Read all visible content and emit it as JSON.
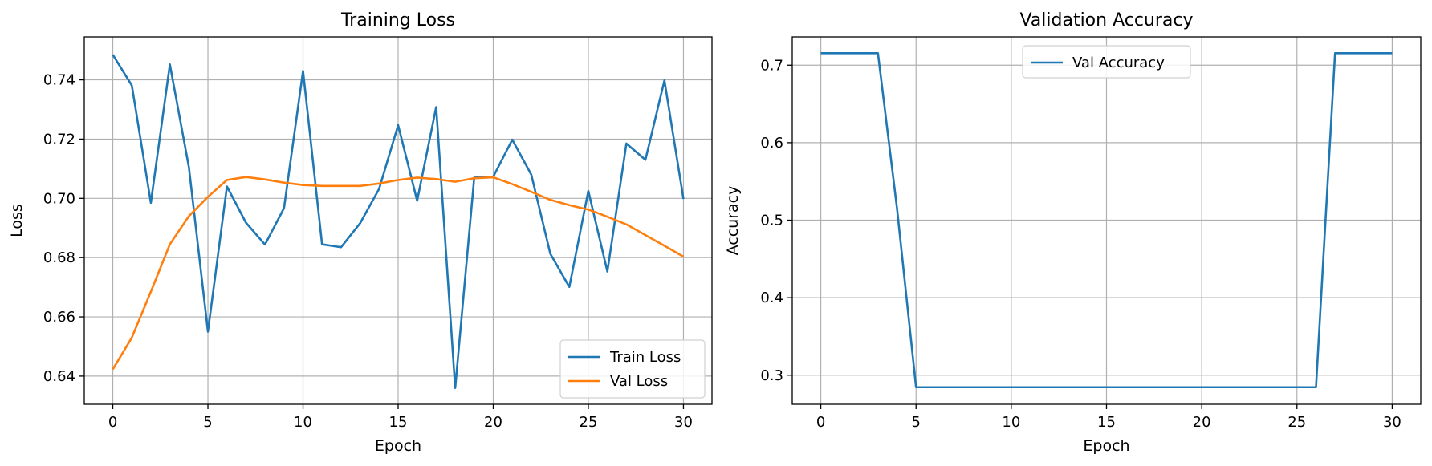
{
  "chart_data": [
    {
      "type": "line",
      "title": "Training Loss",
      "xlabel": "Epoch",
      "ylabel": "Loss",
      "xlim": [
        -1.5,
        31.5
      ],
      "ylim": [
        0.6305,
        0.7545
      ],
      "xticks": [
        0,
        5,
        10,
        15,
        20,
        25,
        30
      ],
      "yticks": [
        0.64,
        0.66,
        0.68,
        0.7,
        0.72,
        0.74
      ],
      "ytick_labels": [
        "0.64",
        "0.66",
        "0.68",
        "0.70",
        "0.72",
        "0.74"
      ],
      "grid": true,
      "legend_position": "lower-right",
      "x": [
        0,
        1,
        2,
        3,
        4,
        5,
        6,
        7,
        8,
        9,
        10,
        11,
        12,
        13,
        14,
        15,
        16,
        17,
        18,
        19,
        20,
        21,
        22,
        23,
        24,
        25,
        26,
        27,
        28,
        29,
        30
      ],
      "series": [
        {
          "name": "Train Loss",
          "color": "#1f77b4",
          "values": [
            0.7485,
            0.7381,
            0.6985,
            0.7452,
            0.7105,
            0.655,
            0.704,
            0.6918,
            0.6844,
            0.6967,
            0.743,
            0.6845,
            0.6835,
            0.6916,
            0.7032,
            0.7247,
            0.6992,
            0.7308,
            0.636,
            0.707,
            0.7073,
            0.7198,
            0.708,
            0.6813,
            0.6701,
            0.7025,
            0.6753,
            0.7185,
            0.713,
            0.7398,
            0.6998
          ]
        },
        {
          "name": "Val Loss",
          "color": "#ff7f0e",
          "values": [
            0.6423,
            0.653,
            0.6685,
            0.6845,
            0.694,
            0.7005,
            0.7062,
            0.7072,
            0.7064,
            0.7053,
            0.7045,
            0.7042,
            0.7042,
            0.7042,
            0.705,
            0.7062,
            0.707,
            0.7065,
            0.7056,
            0.7068,
            0.7071,
            0.7048,
            0.7022,
            0.6995,
            0.6977,
            0.6962,
            0.6938,
            0.6912,
            0.6876,
            0.684,
            0.6803
          ]
        }
      ]
    },
    {
      "type": "line",
      "title": "Validation Accuracy",
      "xlabel": "Epoch",
      "ylabel": "Accuracy",
      "xlim": [
        -1.5,
        31.5
      ],
      "ylim": [
        0.2625,
        0.7365
      ],
      "xticks": [
        0,
        5,
        10,
        15,
        20,
        25,
        30
      ],
      "yticks": [
        0.3,
        0.4,
        0.5,
        0.6,
        0.7
      ],
      "ytick_labels": [
        "0.3",
        "0.4",
        "0.5",
        "0.6",
        "0.7"
      ],
      "grid": true,
      "legend_position": "upper-center",
      "x": [
        0,
        1,
        2,
        3,
        4,
        5,
        6,
        7,
        8,
        9,
        10,
        11,
        12,
        13,
        14,
        15,
        16,
        17,
        18,
        19,
        20,
        21,
        22,
        23,
        24,
        25,
        26,
        27,
        28,
        29,
        30
      ],
      "series": [
        {
          "name": "Val Accuracy",
          "color": "#1f77b4",
          "values": [
            0.7155,
            0.7155,
            0.7155,
            0.7155,
            0.5155,
            0.2845,
            0.2845,
            0.2845,
            0.2845,
            0.2845,
            0.2845,
            0.2845,
            0.2845,
            0.2845,
            0.2845,
            0.2845,
            0.2845,
            0.2845,
            0.2845,
            0.2845,
            0.2845,
            0.2845,
            0.2845,
            0.2845,
            0.2845,
            0.2845,
            0.2845,
            0.7155,
            0.7155,
            0.7155,
            0.7155
          ]
        }
      ]
    }
  ]
}
